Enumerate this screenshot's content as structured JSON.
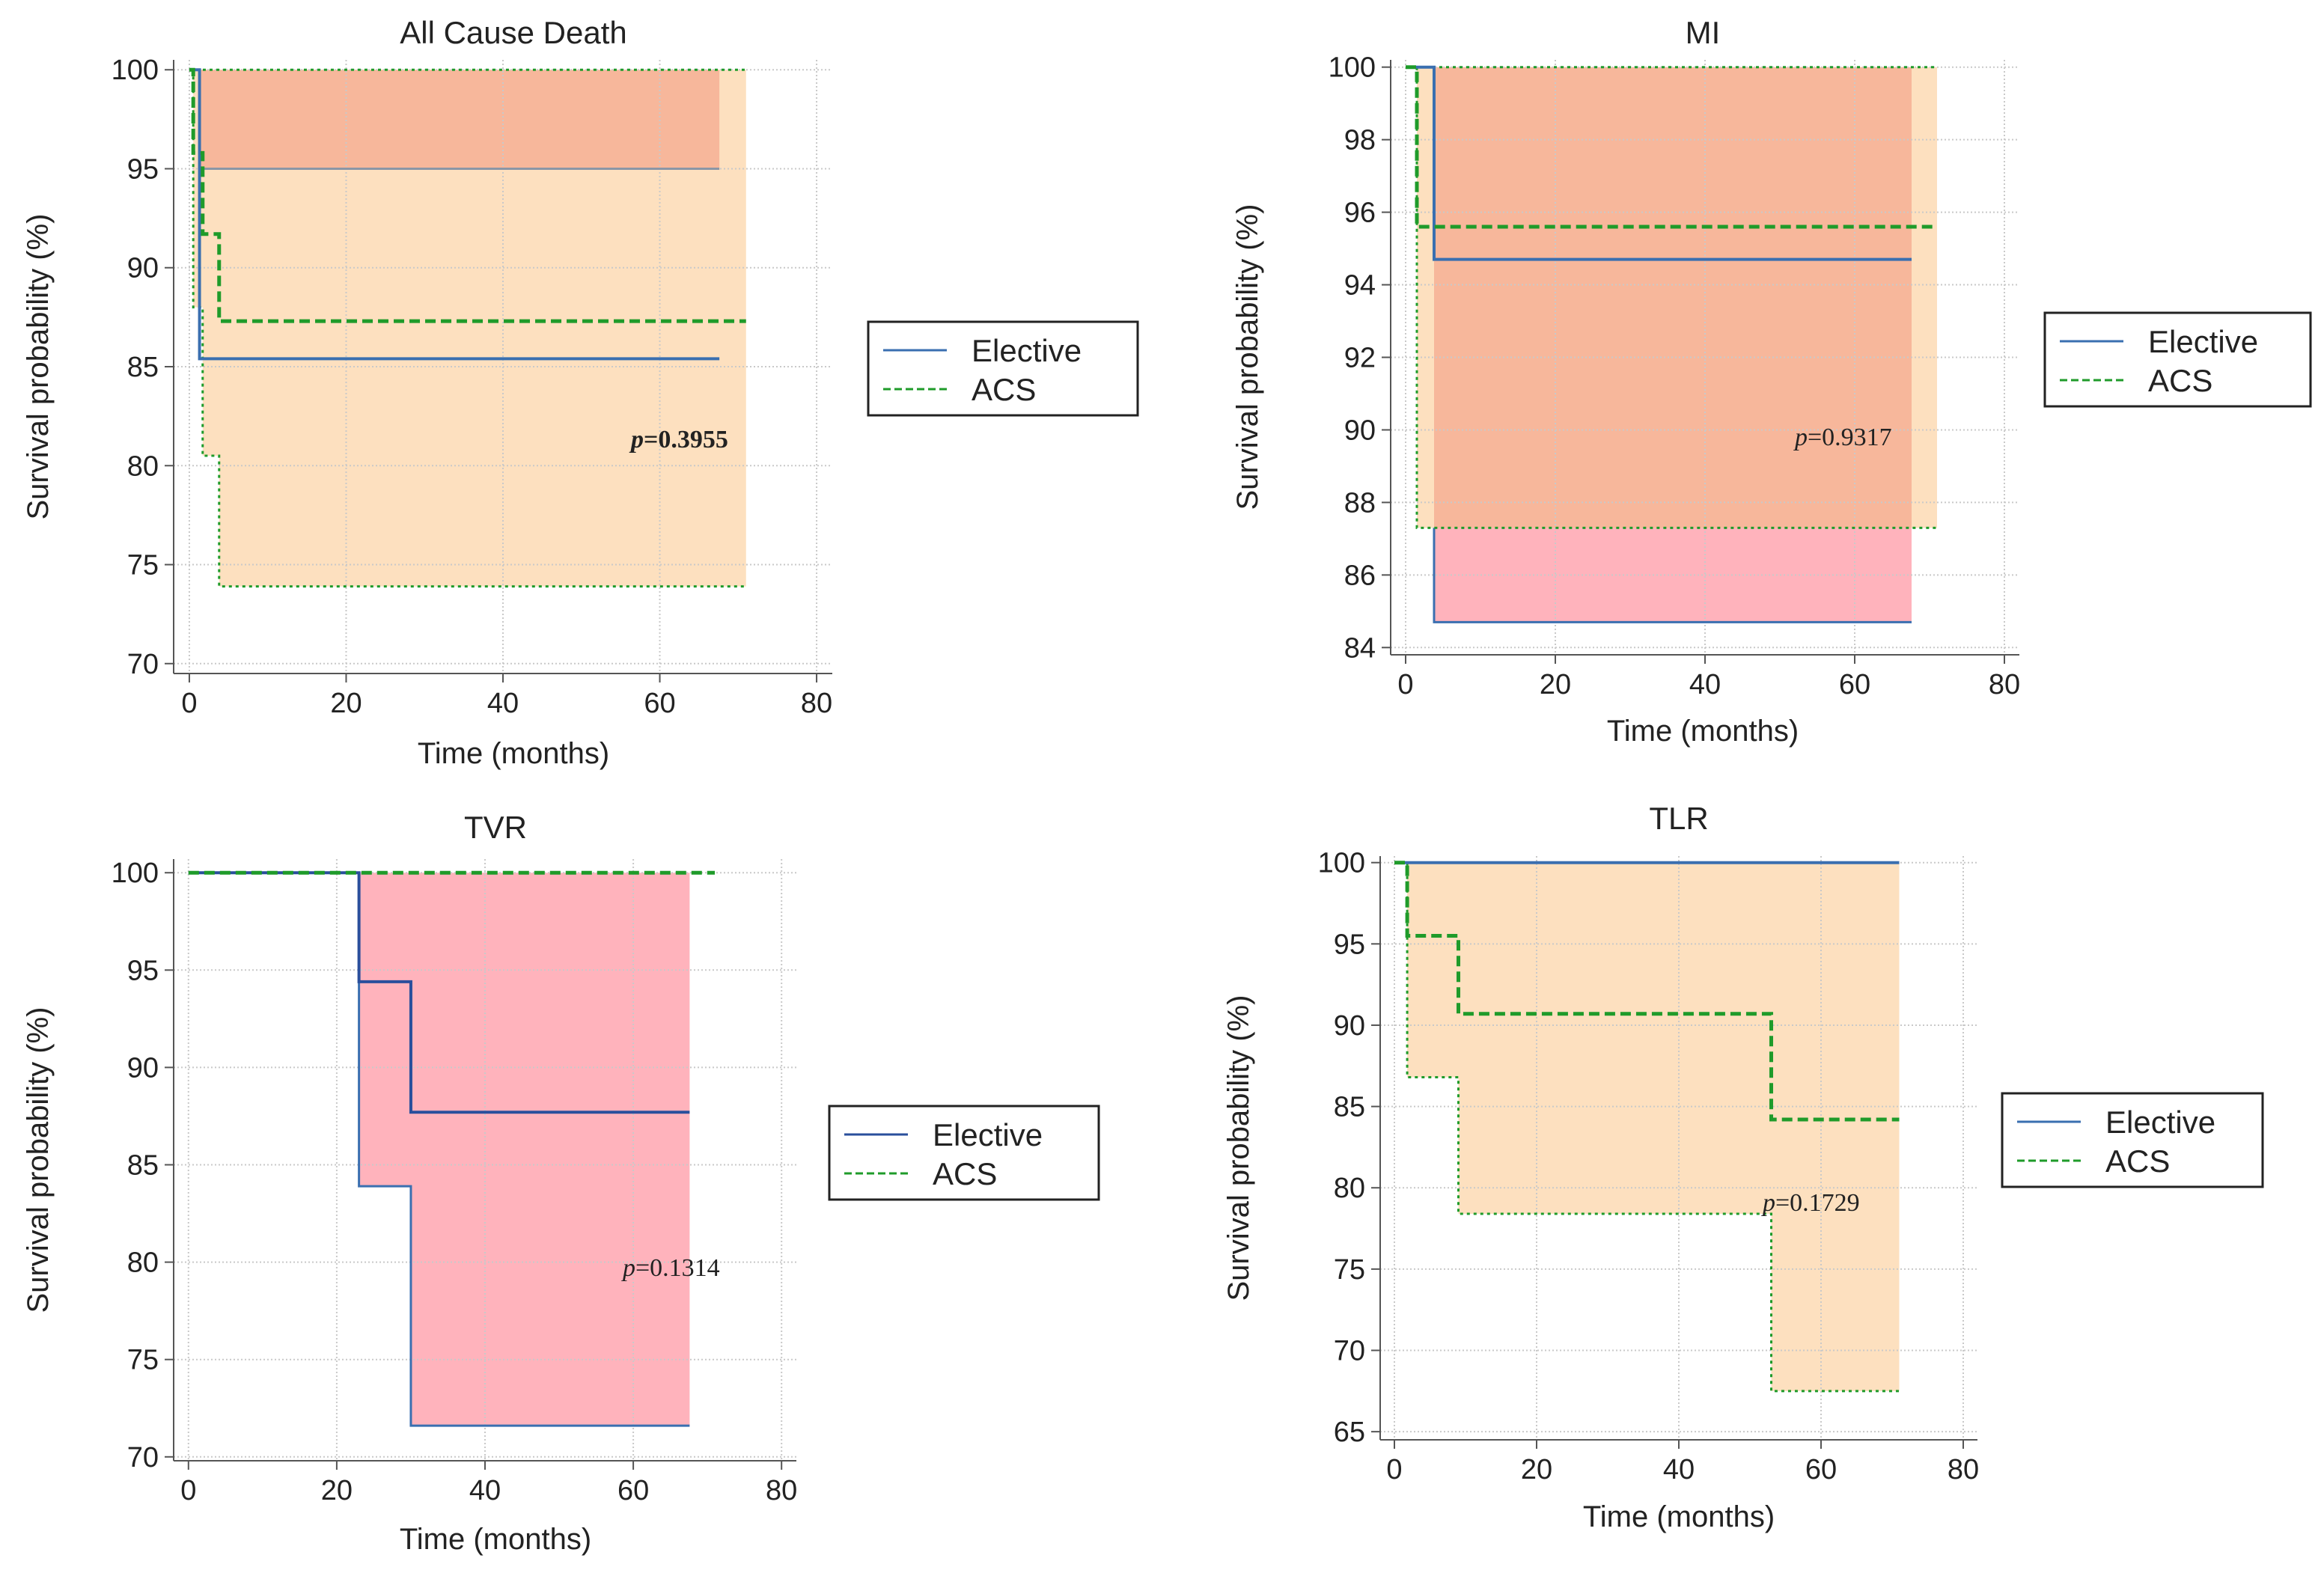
{
  "colors": {
    "elective_line": "#3a6fb0",
    "elective_ci_fill": "#ffb3bc",
    "acs_line": "#1f9b2a",
    "acs_ci_fill": "#fde0bf",
    "overlap_fill": "#f7b79b",
    "overlap_ci_grey": "#8c96a6",
    "grid": "#c9c9c9",
    "axis": "#555555"
  },
  "chart_data": [
    {
      "type": "line",
      "title": "All Cause Death",
      "xlabel": "Time (months)",
      "ylabel": "Survival probability (%)",
      "xlim": [
        -2,
        82
      ],
      "ylim": [
        69.5,
        100.5
      ],
      "xticks": [
        0,
        20,
        40,
        60,
        80
      ],
      "yticks": [
        70,
        75,
        80,
        85,
        90,
        95,
        100
      ],
      "xtick_labels": [
        "0",
        "20",
        "40",
        "60",
        "80"
      ],
      "ytick_labels": [
        "70",
        "75",
        "80",
        "85",
        "90",
        "95",
        "100"
      ],
      "grid": true,
      "p_value": {
        "prefix": "p",
        "value": "=0.3955",
        "bold": true
      },
      "legend": {
        "entries": [
          "Elective",
          "ACS"
        ],
        "position": "right"
      },
      "series": [
        {
          "name": "Elective",
          "style": "solid",
          "color": "#3a6fb0",
          "x": [
            0,
            1.3,
            1.3,
            67.6
          ],
          "y": [
            100,
            100,
            85.4,
            85.4
          ]
        },
        {
          "name": "ACS",
          "style": "dashed",
          "color": "#1f9b2a",
          "x": [
            0,
            0.5,
            0.5,
            1.7,
            1.7,
            3.8,
            3.8,
            71
          ],
          "y": [
            100,
            100,
            95.8,
            95.8,
            91.7,
            91.7,
            87.3,
            87.3
          ]
        }
      ],
      "ci_bands": [
        {
          "series": "ACS",
          "fill": "#fde0bf",
          "x": [
            0,
            0.5,
            0.5,
            1.7,
            1.7,
            3.8,
            3.8,
            71
          ],
          "upper": [
            100,
            100,
            100,
            100,
            100,
            100,
            100,
            100
          ],
          "lower": [
            100,
            100,
            88,
            88,
            80.5,
            80.5,
            73.9,
            73.9
          ]
        },
        {
          "series": "Elective",
          "fill": "#f7b79b",
          "x": [
            0,
            1.3,
            1.3,
            67.6
          ],
          "upper": [
            100,
            100,
            100,
            100
          ],
          "lower": [
            100,
            100,
            95,
            95
          ]
        }
      ],
      "ci_lines": [
        {
          "style": "solid",
          "color": "#8c96a6",
          "x": [
            1.3,
            67.6
          ],
          "y": [
            95,
            95
          ]
        },
        {
          "style": "dotted",
          "color": "#1f9b2a",
          "x": [
            0,
            71
          ],
          "y": [
            100,
            100
          ]
        },
        {
          "style": "dotted",
          "color": "#1f9b2a",
          "x": [
            0.5,
            0.5,
            1.7,
            1.7,
            3.8,
            3.8,
            71
          ],
          "y": [
            100,
            88,
            88,
            80.5,
            80.5,
            73.9,
            73.9
          ]
        }
      ]
    },
    {
      "type": "line",
      "title": "MI",
      "xlabel": "Time (months)",
      "ylabel": "Survival probability (%)",
      "xlim": [
        -2,
        82
      ],
      "ylim": [
        83.8,
        100.2
      ],
      "xticks": [
        0,
        20,
        40,
        60,
        80
      ],
      "yticks": [
        84,
        86,
        88,
        90,
        92,
        94,
        96,
        98,
        100
      ],
      "xtick_labels": [
        "0",
        "20",
        "40",
        "60",
        "80"
      ],
      "ytick_labels": [
        "84",
        "86",
        "88",
        "90",
        "92",
        "94",
        "96",
        "98",
        "100"
      ],
      "grid": true,
      "p_value": {
        "prefix": "p",
        "value": "=0.9317",
        "bold": false
      },
      "legend": {
        "entries": [
          "Elective",
          "ACS"
        ],
        "position": "right"
      },
      "series": [
        {
          "name": "Elective",
          "style": "solid",
          "color": "#3a6fb0",
          "x": [
            0,
            3.8,
            3.8,
            67.6
          ],
          "y": [
            100,
            100,
            94.7,
            94.7
          ]
        },
        {
          "name": "ACS",
          "style": "dashed",
          "color": "#1f9b2a",
          "x": [
            0,
            1.5,
            1.5,
            71
          ],
          "y": [
            100,
            100,
            95.6,
            95.6
          ]
        }
      ],
      "ci_bands": [
        {
          "series": "Elective",
          "fill": "#ffb3bc",
          "x": [
            0,
            3.8,
            3.8,
            67.6
          ],
          "upper": [
            100,
            100,
            100,
            100
          ],
          "lower": [
            100,
            100,
            84.7,
            84.7
          ]
        },
        {
          "series": "ACS",
          "fill": "#fde0bf",
          "x": [
            0,
            1.5,
            1.5,
            71
          ],
          "upper": [
            100,
            100,
            100,
            100
          ],
          "lower": [
            100,
            100,
            87.3,
            87.3
          ]
        },
        {
          "series": "overlap",
          "fill": "#f7b79b",
          "x": [
            3.8,
            67.6
          ],
          "upper": [
            100,
            100
          ],
          "lower": [
            87.3,
            87.3
          ]
        }
      ],
      "ci_lines": [
        {
          "style": "solid",
          "color": "#3a6fb0",
          "x": [
            3.8,
            3.8,
            67.6
          ],
          "y": [
            87.3,
            84.7,
            84.7
          ]
        },
        {
          "style": "dotted",
          "color": "#1f9b2a",
          "x": [
            0,
            71
          ],
          "y": [
            100,
            100
          ]
        },
        {
          "style": "dotted",
          "color": "#1f9b2a",
          "x": [
            1.5,
            1.5,
            71
          ],
          "y": [
            100,
            87.3,
            87.3
          ]
        }
      ]
    },
    {
      "type": "line",
      "title": "TVR",
      "xlabel": "Time (months)",
      "ylabel": "Survival probability (%)",
      "xlim": [
        -2,
        82
      ],
      "ylim": [
        69.8,
        100.7
      ],
      "xticks": [
        0,
        20,
        40,
        60,
        80
      ],
      "yticks": [
        70,
        75,
        80,
        85,
        90,
        95,
        100
      ],
      "xtick_labels": [
        "0",
        "20",
        "40",
        "60",
        "80"
      ],
      "ytick_labels": [
        "70",
        "75",
        "80",
        "85",
        "90",
        "95",
        "100"
      ],
      "grid": true,
      "p_value": {
        "prefix": "p",
        "value": "=0.1314",
        "bold": false
      },
      "legend": {
        "entries": [
          "Elective",
          "ACS"
        ],
        "position": "right"
      },
      "series": [
        {
          "name": "Elective",
          "style": "solid",
          "color": "#2a4f9c",
          "x": [
            0,
            23,
            23,
            30,
            30,
            67.6
          ],
          "y": [
            100,
            100,
            94.4,
            94.4,
            87.7,
            87.7
          ]
        },
        {
          "name": "ACS",
          "style": "dashed",
          "color": "#1f9b2a",
          "x": [
            0,
            71
          ],
          "y": [
            100,
            100
          ]
        }
      ],
      "ci_bands": [
        {
          "series": "Elective",
          "fill": "#ffb3bc",
          "x": [
            0,
            23,
            23,
            30,
            30,
            67.6
          ],
          "upper": [
            100,
            100,
            100,
            100,
            100,
            100
          ],
          "lower": [
            100,
            100,
            83.9,
            83.9,
            71.6,
            71.6
          ]
        }
      ],
      "ci_lines": [
        {
          "style": "solid",
          "color": "#3a6fb0",
          "x": [
            23,
            23,
            30,
            30,
            67.6
          ],
          "y": [
            100,
            83.9,
            83.9,
            71.6,
            71.6
          ]
        }
      ]
    },
    {
      "type": "line",
      "title": "TLR",
      "xlabel": "Time (months)",
      "ylabel": "Survival probability (%)",
      "xlim": [
        -2,
        82
      ],
      "ylim": [
        64.5,
        100.4
      ],
      "xticks": [
        0,
        20,
        40,
        60,
        80
      ],
      "yticks": [
        65,
        70,
        75,
        80,
        85,
        90,
        95,
        100
      ],
      "xtick_labels": [
        "0",
        "20",
        "40",
        "60",
        "80"
      ],
      "ytick_labels": [
        "65",
        "70",
        "75",
        "80",
        "85",
        "90",
        "95",
        "100"
      ],
      "grid": true,
      "p_value": {
        "prefix": "p",
        "value": "=0.1729",
        "bold": false
      },
      "legend": {
        "entries": [
          "Elective",
          "ACS"
        ],
        "position": "right"
      },
      "series": [
        {
          "name": "Elective",
          "style": "solid",
          "color": "#3a6fb0",
          "x": [
            0,
            71
          ],
          "y": [
            100,
            100
          ]
        },
        {
          "name": "ACS",
          "style": "dashed",
          "color": "#1f9b2a",
          "x": [
            0,
            1.8,
            1.8,
            9,
            9,
            53,
            53,
            71
          ],
          "y": [
            100,
            100,
            95.5,
            95.5,
            90.7,
            90.7,
            84.2,
            84.2
          ]
        }
      ],
      "ci_bands": [
        {
          "series": "ACS",
          "fill": "#fde0bf",
          "x": [
            0,
            1.8,
            1.8,
            9,
            9,
            53,
            53,
            71
          ],
          "upper": [
            100,
            100,
            100,
            100,
            100,
            100,
            100,
            100
          ],
          "lower": [
            100,
            100,
            86.8,
            86.8,
            78.4,
            78.4,
            67.5,
            67.5
          ]
        }
      ],
      "ci_lines": [
        {
          "style": "dotted",
          "color": "#1f9b2a",
          "x": [
            1.8,
            1.8,
            9,
            9,
            53,
            53,
            71
          ],
          "y": [
            100,
            86.8,
            86.8,
            78.4,
            78.4,
            67.5,
            67.5
          ]
        }
      ]
    }
  ]
}
